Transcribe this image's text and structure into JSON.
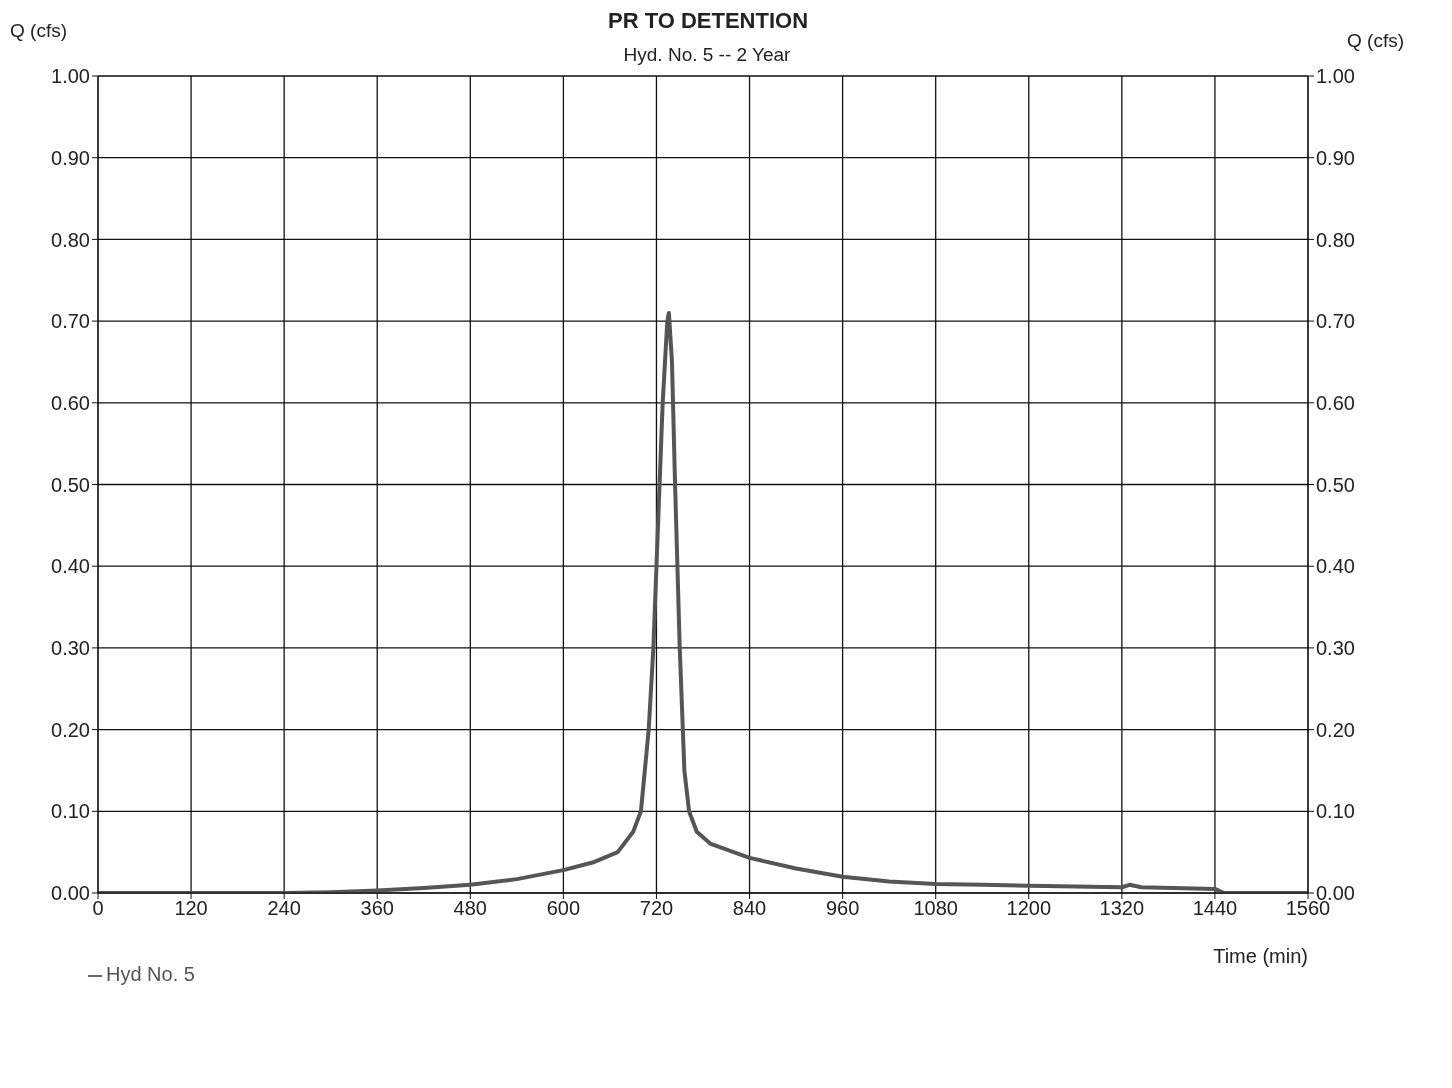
{
  "chart_data": {
    "type": "line",
    "title": "PR TO DETENTION",
    "subtitle": "Hyd. No. 5 -- 2 Year",
    "xlabel": "Time (min)",
    "ylabel": "Q (cfs)",
    "y2label": "Q (cfs)",
    "x": [
      0,
      120,
      240,
      300,
      360,
      420,
      480,
      540,
      600,
      640,
      670,
      690,
      700,
      710,
      716,
      722,
      728,
      734,
      736,
      740,
      744,
      750,
      756,
      762,
      772,
      790,
      840,
      900,
      960,
      1020,
      1080,
      1140,
      1200,
      1260,
      1320,
      1330,
      1345,
      1440,
      1452,
      1560
    ],
    "series": [
      {
        "name": "Hyd No. 5",
        "color": "#555555",
        "values": [
          0,
          0,
          0,
          0.001,
          0.003,
          0.006,
          0.01,
          0.017,
          0.028,
          0.038,
          0.05,
          0.075,
          0.1,
          0.2,
          0.3,
          0.45,
          0.6,
          0.7,
          0.71,
          0.65,
          0.5,
          0.3,
          0.15,
          0.1,
          0.075,
          0.06,
          0.043,
          0.03,
          0.02,
          0.014,
          0.011,
          0.01,
          0.009,
          0.008,
          0.007,
          0.01,
          0.007,
          0.005,
          0,
          0
        ]
      }
    ],
    "xlim": [
      0,
      1560
    ],
    "xticks": [
      0,
      120,
      240,
      360,
      480,
      600,
      720,
      840,
      960,
      1080,
      1200,
      1320,
      1440,
      1560
    ],
    "ylim": [
      0,
      1
    ],
    "yticks": [
      {
        "value": 0,
        "label": "0.00"
      },
      {
        "value": 0.1,
        "label": "0.10"
      },
      {
        "value": 0.2,
        "label": "0.20"
      },
      {
        "value": 0.3,
        "label": "0.30"
      },
      {
        "value": 0.4,
        "label": "0.40"
      },
      {
        "value": 0.5,
        "label": "0.50"
      },
      {
        "value": 0.6,
        "label": "0.60"
      },
      {
        "value": 0.7,
        "label": "0.70"
      },
      {
        "value": 0.8,
        "label": "0.80"
      },
      {
        "value": 0.9,
        "label": "0.90"
      },
      {
        "value": 1,
        "label": "1.00"
      }
    ],
    "y2lim": [
      0,
      1
    ],
    "y2ticks": [
      {
        "value": 0,
        "label": "0.00"
      },
      {
        "value": 0.1,
        "label": "0.10"
      },
      {
        "value": 0.2,
        "label": "0.20"
      },
      {
        "value": 0.3,
        "label": "0.30"
      },
      {
        "value": 0.4,
        "label": "0.40"
      },
      {
        "value": 0.5,
        "label": "0.50"
      },
      {
        "value": 0.6,
        "label": "0.60"
      },
      {
        "value": 0.7,
        "label": "0.70"
      },
      {
        "value": 0.8,
        "label": "0.80"
      },
      {
        "value": 0.9,
        "label": "0.90"
      },
      {
        "value": 1,
        "label": "1.00"
      }
    ],
    "grid": true,
    "legend": "bottom left",
    "marker": "none",
    "line_style": "solid"
  }
}
